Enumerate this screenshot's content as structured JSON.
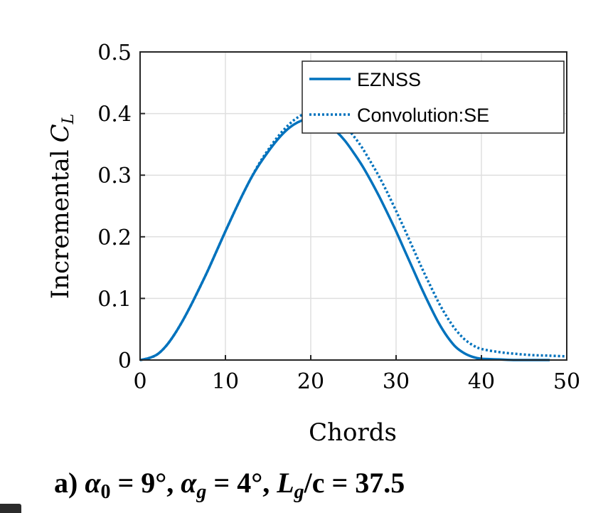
{
  "chart_data": {
    "type": "line",
    "title": "",
    "xlabel": "Chords",
    "ylabel": "Incremental C_L",
    "ylabel_parts": {
      "text": "Incremental",
      "symbol": "C",
      "subscript": "L"
    },
    "xlim": [
      0,
      50
    ],
    "ylim": [
      0,
      0.5
    ],
    "xticks": [
      "0",
      "10",
      "20",
      "30",
      "40",
      "50"
    ],
    "yticks": [
      "0",
      "0.1",
      "0.2",
      "0.3",
      "0.4",
      "0.5"
    ],
    "grid": true,
    "legend_position": "top-right",
    "series": [
      {
        "name": "EZNSS",
        "style": "solid",
        "color": "#0072BD",
        "x": [
          0,
          1,
          2,
          3,
          4,
          5,
          6,
          7,
          8,
          9,
          10,
          11,
          12,
          13,
          14,
          15,
          16,
          17,
          18,
          19,
          20,
          21,
          22,
          23,
          24,
          25,
          26,
          27,
          28,
          29,
          30,
          31,
          32,
          33,
          34,
          35,
          36,
          37,
          38,
          39,
          40,
          42,
          44,
          46,
          48
        ],
        "y": [
          0,
          0.003,
          0.009,
          0.022,
          0.041,
          0.064,
          0.09,
          0.118,
          0.147,
          0.178,
          0.209,
          0.239,
          0.268,
          0.295,
          0.318,
          0.338,
          0.356,
          0.371,
          0.382,
          0.389,
          0.392,
          0.389,
          0.382,
          0.371,
          0.356,
          0.337,
          0.316,
          0.292,
          0.266,
          0.238,
          0.209,
          0.178,
          0.147,
          0.116,
          0.087,
          0.06,
          0.038,
          0.021,
          0.011,
          0.005,
          0.002,
          0.001,
          0,
          0,
          0
        ]
      },
      {
        "name": "Convolution:SE",
        "style": "dotted",
        "color": "#0072BD",
        "x": [
          0,
          1,
          2,
          3,
          4,
          5,
          6,
          7,
          8,
          9,
          10,
          11,
          12,
          13,
          14,
          15,
          16,
          17,
          18,
          19,
          20,
          21,
          22,
          23,
          24,
          25,
          26,
          27,
          28,
          29,
          30,
          31,
          32,
          33,
          34,
          35,
          36,
          37,
          38,
          39,
          40,
          42,
          44,
          46,
          48,
          50
        ],
        "y": [
          0,
          0.003,
          0.009,
          0.022,
          0.041,
          0.064,
          0.09,
          0.118,
          0.147,
          0.178,
          0.209,
          0.239,
          0.268,
          0.295,
          0.32,
          0.341,
          0.36,
          0.376,
          0.389,
          0.398,
          0.403,
          0.404,
          0.4,
          0.392,
          0.38,
          0.364,
          0.345,
          0.322,
          0.298,
          0.271,
          0.242,
          0.212,
          0.181,
          0.15,
          0.121,
          0.093,
          0.069,
          0.049,
          0.034,
          0.024,
          0.018,
          0.013,
          0.01,
          0.008,
          0.007,
          0.006
        ]
      }
    ]
  },
  "caption": {
    "prefix": "a) ",
    "alpha0_symbol": "α",
    "alpha0_sub": "0",
    "alpha0_value": " = 9°, ",
    "alphag_symbol": "α",
    "alphag_sub": "g",
    "alphag_value": " = 4°, ",
    "lg_symbol": "L",
    "lg_sub": "g",
    "lg_value": "/c = 37.5"
  }
}
